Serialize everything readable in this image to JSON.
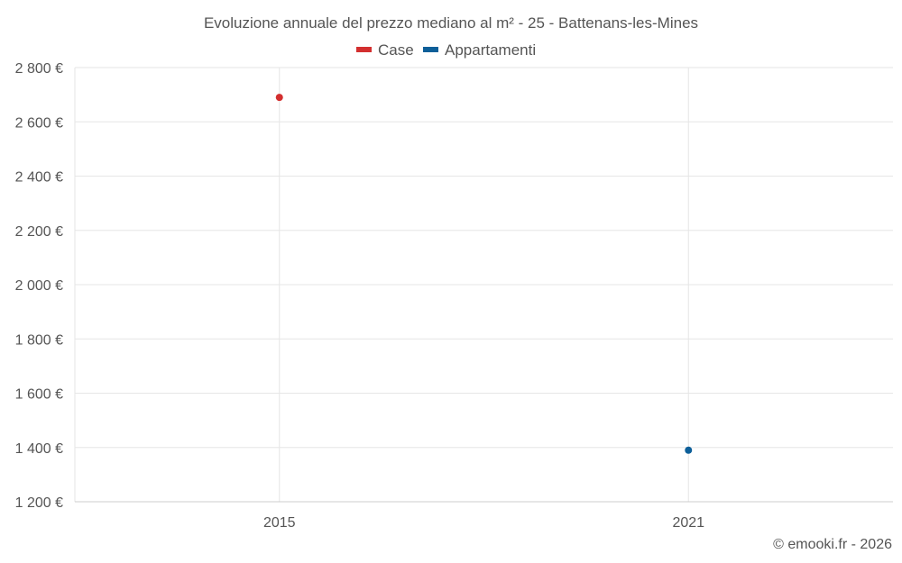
{
  "chart_data": {
    "type": "scatter",
    "title": "Evoluzione annuale del prezzo mediano al m² - 25 - Battenans-les-Mines",
    "categories": [
      "2015",
      "2021"
    ],
    "series": [
      {
        "name": "Case",
        "color": "#d32f2f",
        "points": [
          {
            "x": "2015",
            "y": 2690
          }
        ]
      },
      {
        "name": "Appartamenti",
        "color": "#0d5f99",
        "points": [
          {
            "x": "2021",
            "y": 1390
          }
        ]
      }
    ],
    "yticks": [
      "2 800 €",
      "2 600 €",
      "2 400 €",
      "2 200 €",
      "2 000 €",
      "1 800 €",
      "1 600 €",
      "1 400 €",
      "1 200 €"
    ],
    "ytick_values": [
      2800,
      2600,
      2400,
      2200,
      2000,
      1800,
      1600,
      1400,
      1200
    ],
    "ylim": [
      1200,
      2800
    ],
    "xlabel": "",
    "ylabel": "",
    "legend_position": "top-center",
    "grid": true
  },
  "credit": "© emooki.fr - 2026"
}
